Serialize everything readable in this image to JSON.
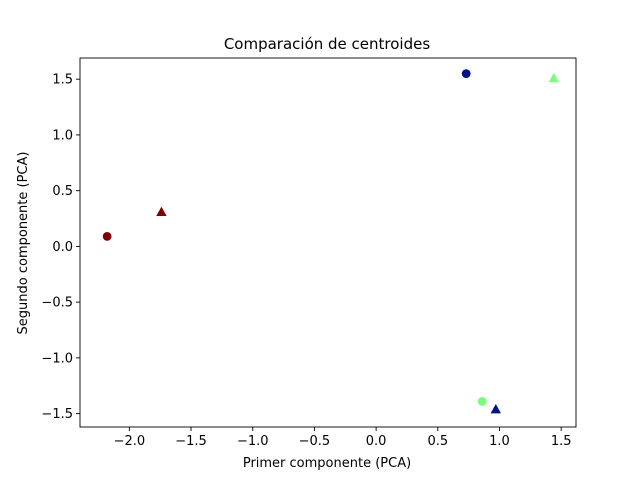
{
  "chart_data": {
    "type": "scatter",
    "title": "Comparación de centroides",
    "xlabel": "Primer componente (PCA)",
    "ylabel": "Segundo componente (PCA)",
    "xlim": [
      -2.4,
      1.62
    ],
    "ylim": [
      -1.62,
      1.69
    ],
    "grid": false,
    "legend": "none",
    "x_ticks": [
      -2.0,
      -1.5,
      -1.0,
      -0.5,
      0.0,
      0.5,
      1.0,
      1.5
    ],
    "x_tick_labels": [
      "−2.0",
      "−1.5",
      "−1.0",
      "−0.5",
      "0.0",
      "0.5",
      "1.0",
      "1.5"
    ],
    "y_ticks": [
      -1.5,
      -1.0,
      -0.5,
      0.0,
      0.5,
      1.0,
      1.5
    ],
    "y_tick_labels": [
      "−1.5",
      "−1.0",
      "−0.5",
      "0.0",
      "0.5",
      "1.0",
      "1.5"
    ],
    "points": [
      {
        "x": 0.73,
        "y": 1.55,
        "marker": "circle",
        "color": "#00128a"
      },
      {
        "x": -2.18,
        "y": 0.09,
        "marker": "circle",
        "color": "#7f0000"
      },
      {
        "x": 0.86,
        "y": -1.39,
        "marker": "circle",
        "color": "#79ff7d"
      },
      {
        "x": 1.44,
        "y": 1.51,
        "marker": "triangle",
        "color": "#79ff7d"
      },
      {
        "x": -1.74,
        "y": 0.31,
        "marker": "triangle",
        "color": "#7f0000"
      },
      {
        "x": 0.97,
        "y": -1.46,
        "marker": "triangle",
        "color": "#00128a"
      }
    ]
  }
}
